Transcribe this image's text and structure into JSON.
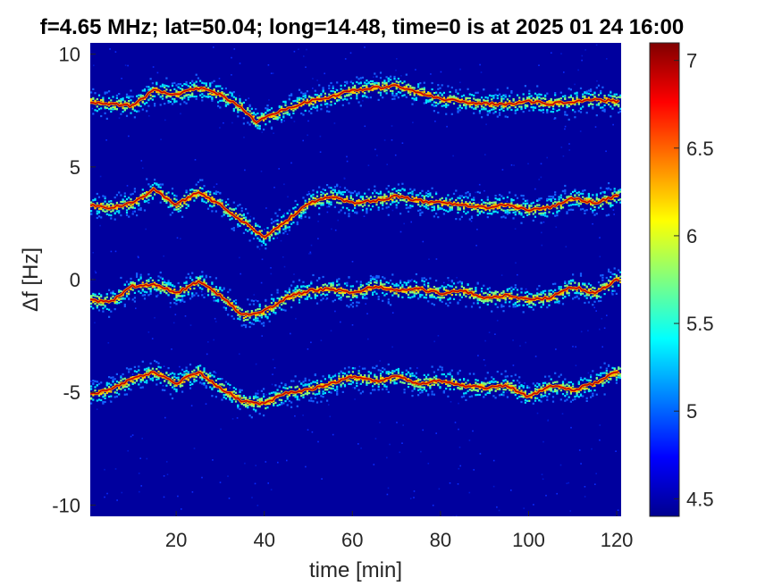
{
  "chart_data": {
    "type": "heatmap",
    "title": "f=4.65 MHz;  lat=50.04; long=14.48, time=0 is at 2025 01 24 16:00",
    "xlabel": "time [min]",
    "ylabel": "Δf [Hz]",
    "xlim": [
      0.5,
      121
    ],
    "ylim": [
      -10.5,
      10.5
    ],
    "x_ticks": [
      20,
      40,
      60,
      80,
      100,
      120
    ],
    "y_ticks": [
      10,
      5,
      0,
      -5,
      -10
    ],
    "colorbar": {
      "colormap": "jet",
      "clim": [
        4.4,
        7.1
      ],
      "ticks": [
        7,
        6.5,
        6,
        5.5,
        5,
        4.5
      ]
    },
    "grid": false,
    "series": [
      {
        "x": [
          0,
          5,
          10,
          15,
          20,
          25,
          30,
          35,
          38,
          42,
          45,
          50,
          55,
          60,
          65,
          70,
          75,
          80,
          85,
          90,
          95,
          100,
          105,
          110,
          115,
          120
        ],
        "y": [
          7.9,
          7.8,
          7.7,
          8.4,
          8.2,
          8.5,
          8.2,
          7.6,
          7.0,
          7.3,
          7.6,
          7.9,
          8.1,
          8.4,
          8.5,
          8.6,
          8.3,
          8.0,
          7.9,
          7.8,
          7.8,
          7.9,
          7.8,
          7.9,
          8.0,
          7.9
        ]
      },
      {
        "x": [
          0,
          5,
          10,
          15,
          20,
          25,
          30,
          35,
          40,
          45,
          50,
          55,
          60,
          65,
          70,
          75,
          80,
          85,
          90,
          95,
          100,
          105,
          110,
          115,
          120
        ],
        "y": [
          3.3,
          3.2,
          3.4,
          4.0,
          3.3,
          3.9,
          3.3,
          2.6,
          1.9,
          2.6,
          3.4,
          3.7,
          3.4,
          3.5,
          3.7,
          3.5,
          3.4,
          3.3,
          3.2,
          3.3,
          3.1,
          3.2,
          3.6,
          3.4,
          3.7
        ]
      },
      {
        "x": [
          0,
          5,
          10,
          15,
          20,
          25,
          30,
          35,
          40,
          45,
          50,
          55,
          60,
          65,
          70,
          75,
          80,
          85,
          90,
          95,
          100,
          105,
          110,
          115,
          120
        ],
        "y": [
          -0.9,
          -1.0,
          -0.3,
          -0.2,
          -0.6,
          -0.1,
          -0.7,
          -1.6,
          -1.4,
          -0.8,
          -0.5,
          -0.4,
          -0.6,
          -0.3,
          -0.5,
          -0.4,
          -0.6,
          -0.5,
          -0.8,
          -0.7,
          -0.9,
          -0.8,
          -0.3,
          -0.6,
          0.0
        ]
      },
      {
        "x": [
          0,
          5,
          10,
          15,
          20,
          25,
          30,
          35,
          40,
          45,
          50,
          55,
          60,
          65,
          70,
          75,
          80,
          85,
          90,
          95,
          100,
          105,
          110,
          115,
          120
        ],
        "y": [
          -5.1,
          -4.9,
          -4.4,
          -4.1,
          -4.6,
          -4.1,
          -4.8,
          -5.4,
          -5.5,
          -5.0,
          -4.9,
          -4.6,
          -4.3,
          -4.5,
          -4.3,
          -4.6,
          -4.5,
          -4.7,
          -4.8,
          -4.7,
          -5.2,
          -4.7,
          -4.9,
          -4.6,
          -4.1
        ]
      }
    ]
  }
}
